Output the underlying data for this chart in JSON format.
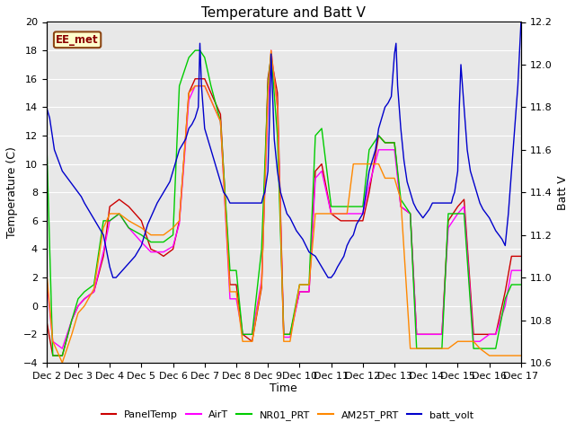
{
  "title": "Temperature and Batt V",
  "xlabel": "Time",
  "ylabel_left": "Temperature (C)",
  "ylabel_right": "Batt V",
  "watermark": "EE_met",
  "xlim": [
    0,
    15
  ],
  "ylim_left": [
    -4,
    20
  ],
  "ylim_right": [
    10.6,
    12.2
  ],
  "xtick_labels": [
    "Dec 2",
    "Dec 3",
    "Dec 4",
    "Dec 5",
    "Dec 6",
    "Dec 7",
    "Dec 8",
    "Dec 9",
    "Dec 10",
    "Dec 11",
    "Dec 12",
    "Dec 13",
    "Dec 14",
    "Dec 15",
    "Dec 16",
    "Dec 17"
  ],
  "yticks_left": [
    -4,
    -2,
    0,
    2,
    4,
    6,
    8,
    10,
    12,
    14,
    16,
    18,
    20
  ],
  "yticks_right": [
    10.6,
    10.8,
    11.0,
    11.2,
    11.4,
    11.6,
    11.8,
    12.0,
    12.2
  ],
  "PanelTemp_x": [
    0,
    0.2,
    0.5,
    0.8,
    1.0,
    1.2,
    1.5,
    1.8,
    2.0,
    2.3,
    2.6,
    3.0,
    3.3,
    3.5,
    3.7,
    4.0,
    4.2,
    4.5,
    4.7,
    4.85,
    5.0,
    5.2,
    5.5,
    5.8,
    6.0,
    6.2,
    6.5,
    6.8,
    7.0,
    7.1,
    7.3,
    7.5,
    7.7,
    8.0,
    8.3,
    8.5,
    8.7,
    9.0,
    9.3,
    9.5,
    9.7,
    10.0,
    10.2,
    10.5,
    10.7,
    11.0,
    11.2,
    11.5,
    11.7,
    12.0,
    12.2,
    12.5,
    12.7,
    13.0,
    13.2,
    13.5,
    13.7,
    14.0,
    14.2,
    14.5,
    14.7,
    15.0
  ],
  "PanelTemp_y": [
    -1,
    -3.5,
    -3.5,
    -1,
    0,
    0.5,
    1,
    3.5,
    7,
    7.5,
    7,
    6,
    4,
    3.8,
    3.5,
    4,
    6,
    15,
    16,
    16,
    16,
    15,
    13.5,
    1.5,
    1.5,
    -2,
    -2.5,
    1.3,
    16,
    17.5,
    15,
    -2,
    -2,
    1,
    1,
    9.5,
    10,
    6.5,
    6,
    6,
    6,
    6,
    8,
    12,
    11.5,
    11.5,
    7,
    6.5,
    -2,
    -2,
    -2,
    -2,
    6,
    7,
    7.5,
    -2,
    -2,
    -2,
    -2,
    1,
    3.5,
    3.5
  ],
  "AirT_x": [
    0,
    0.2,
    0.5,
    0.8,
    1.0,
    1.2,
    1.5,
    1.8,
    2.0,
    2.3,
    2.6,
    3.0,
    3.3,
    3.5,
    3.7,
    4.0,
    4.2,
    4.5,
    4.7,
    4.85,
    5.0,
    5.2,
    5.5,
    5.8,
    6.0,
    6.2,
    6.5,
    6.8,
    7.0,
    7.1,
    7.3,
    7.5,
    7.7,
    8.0,
    8.3,
    8.5,
    8.7,
    9.0,
    9.3,
    9.5,
    9.7,
    10.0,
    10.2,
    10.5,
    10.7,
    11.0,
    11.2,
    11.5,
    11.7,
    12.0,
    12.2,
    12.5,
    12.7,
    13.0,
    13.2,
    13.5,
    13.7,
    14.0,
    14.2,
    14.5,
    14.7,
    15.0
  ],
  "AirT_y": [
    2,
    -2.5,
    -3,
    -1,
    0,
    0.5,
    1,
    3.8,
    6,
    6.5,
    5.5,
    4.5,
    3.8,
    3.8,
    3.8,
    4.2,
    5.8,
    14.5,
    15.5,
    15.5,
    15.5,
    14.5,
    13,
    0.5,
    0.5,
    -2,
    -2,
    1.8,
    14,
    18,
    14,
    -2.2,
    -2.2,
    1,
    1,
    9,
    9.5,
    6.5,
    6.5,
    6.5,
    6.5,
    6.5,
    8.5,
    11,
    11,
    11,
    7,
    6.5,
    -2,
    -2,
    -2,
    -2,
    5.5,
    6.5,
    7,
    -2.5,
    -2.5,
    -2,
    -2,
    0,
    2.5,
    2.5
  ],
  "NR01_PRT_x": [
    0,
    0.2,
    0.5,
    0.8,
    1.0,
    1.2,
    1.5,
    1.8,
    2.0,
    2.3,
    2.6,
    3.0,
    3.3,
    3.5,
    3.7,
    4.0,
    4.2,
    4.5,
    4.7,
    4.85,
    5.0,
    5.2,
    5.5,
    5.8,
    6.0,
    6.2,
    6.5,
    6.8,
    7.0,
    7.1,
    7.3,
    7.5,
    7.7,
    8.0,
    8.3,
    8.5,
    8.7,
    9.0,
    9.3,
    9.5,
    9.7,
    10.0,
    10.2,
    10.5,
    10.7,
    11.0,
    11.2,
    11.5,
    11.7,
    12.0,
    12.2,
    12.5,
    12.7,
    13.0,
    13.2,
    13.5,
    13.7,
    14.0,
    14.2,
    14.5,
    14.7,
    15.0
  ],
  "NR01_PRT_y": [
    12,
    -3.5,
    -3.5,
    -1,
    0.5,
    1,
    1.5,
    6,
    6,
    6.5,
    5.5,
    5,
    4.5,
    4.5,
    4.5,
    5,
    15.5,
    17.5,
    18,
    18,
    17.5,
    15.5,
    13,
    2.5,
    2.5,
    -2,
    -2,
    4,
    15.5,
    17.8,
    12,
    -2,
    -2,
    1.5,
    1.5,
    12,
    12.5,
    7,
    7,
    7,
    7,
    7,
    11,
    12,
    11.5,
    11.5,
    7.5,
    6.5,
    -3,
    -3,
    -3,
    -3,
    6.5,
    6.5,
    6.5,
    -3,
    -3,
    -3,
    -3,
    0.5,
    1.5,
    1.5
  ],
  "AM25T_PRT_x": [
    0,
    0.2,
    0.5,
    0.8,
    1.0,
    1.2,
    1.5,
    1.8,
    2.0,
    2.3,
    2.6,
    3.0,
    3.3,
    3.5,
    3.7,
    4.0,
    4.2,
    4.5,
    4.7,
    4.85,
    5.0,
    5.2,
    5.5,
    5.8,
    6.0,
    6.2,
    6.5,
    6.8,
    7.0,
    7.1,
    7.3,
    7.5,
    7.7,
    8.0,
    8.3,
    8.5,
    8.7,
    9.0,
    9.3,
    9.5,
    9.7,
    10.0,
    10.2,
    10.5,
    10.7,
    11.0,
    11.2,
    11.5,
    11.7,
    12.0,
    12.2,
    12.5,
    12.7,
    13.0,
    13.2,
    13.5,
    13.7,
    14.0,
    14.2,
    14.5,
    14.7,
    15.0
  ],
  "AM25T_PRT_y": [
    2.5,
    -2.5,
    -4,
    -2,
    -0.5,
    0,
    1.2,
    5.5,
    6.5,
    6.5,
    6,
    5.5,
    5,
    5,
    5,
    5.5,
    6,
    15,
    15.5,
    15.5,
    15.5,
    14.5,
    13,
    1,
    1,
    -2.5,
    -2.5,
    1.5,
    15,
    18,
    14,
    -2.5,
    -2.5,
    1.5,
    1.5,
    6.5,
    6.5,
    6.5,
    6.5,
    6.5,
    10,
    10,
    10,
    10,
    9,
    9,
    7.5,
    -3,
    -3,
    -3,
    -3,
    -3,
    -3,
    -2.5,
    -2.5,
    -2.5,
    -3,
    -3.5,
    -3.5,
    -3.5,
    -3.5,
    -3.5
  ],
  "batt_volt_x": [
    0,
    0.1,
    0.15,
    0.25,
    0.5,
    0.75,
    0.9,
    1.0,
    1.1,
    1.2,
    1.4,
    1.6,
    1.8,
    2.0,
    2.1,
    2.2,
    2.5,
    2.8,
    3.0,
    3.1,
    3.2,
    3.5,
    3.7,
    3.9,
    4.0,
    4.1,
    4.2,
    4.4,
    4.5,
    4.6,
    4.7,
    4.8,
    4.85,
    4.9,
    5.0,
    5.1,
    5.2,
    5.3,
    5.4,
    5.5,
    5.6,
    5.7,
    5.8,
    5.9,
    6.0,
    6.1,
    6.2,
    6.3,
    6.4,
    6.5,
    6.6,
    6.7,
    6.8,
    6.85,
    6.9,
    7.0,
    7.05,
    7.1,
    7.15,
    7.2,
    7.3,
    7.4,
    7.5,
    7.6,
    7.7,
    7.8,
    7.9,
    8.0,
    8.1,
    8.2,
    8.3,
    8.5,
    8.7,
    8.9,
    9.0,
    9.1,
    9.2,
    9.4,
    9.5,
    9.6,
    9.7,
    9.8,
    10.0,
    10.1,
    10.2,
    10.4,
    10.5,
    10.6,
    10.7,
    10.8,
    10.9,
    11.0,
    11.05,
    11.1,
    11.2,
    11.3,
    11.4,
    11.5,
    11.6,
    11.7,
    11.8,
    11.9,
    12.0,
    12.1,
    12.2,
    12.3,
    12.4,
    12.5,
    12.6,
    12.7,
    12.8,
    12.85,
    12.9,
    13.0,
    13.05,
    13.1,
    13.2,
    13.3,
    13.4,
    13.5,
    13.6,
    13.7,
    13.8,
    13.9,
    14.0,
    14.1,
    14.2,
    14.3,
    14.4,
    14.5,
    14.6,
    14.7,
    14.8,
    14.9,
    15.0
  ],
  "batt_volt_y": [
    11.8,
    11.75,
    11.7,
    11.6,
    11.5,
    11.45,
    11.42,
    11.4,
    11.38,
    11.35,
    11.3,
    11.25,
    11.2,
    11.05,
    11.0,
    11.0,
    11.05,
    11.1,
    11.15,
    11.2,
    11.25,
    11.35,
    11.4,
    11.45,
    11.5,
    11.55,
    11.6,
    11.65,
    11.7,
    11.72,
    11.75,
    11.8,
    12.1,
    11.9,
    11.7,
    11.65,
    11.6,
    11.55,
    11.5,
    11.45,
    11.4,
    11.38,
    11.35,
    11.35,
    11.35,
    11.35,
    11.35,
    11.35,
    11.35,
    11.35,
    11.35,
    11.35,
    11.35,
    11.38,
    11.4,
    11.5,
    11.75,
    12.05,
    11.85,
    11.65,
    11.5,
    11.4,
    11.35,
    11.3,
    11.28,
    11.25,
    11.22,
    11.2,
    11.18,
    11.15,
    11.12,
    11.1,
    11.05,
    11.0,
    11.0,
    11.02,
    11.05,
    11.1,
    11.15,
    11.18,
    11.2,
    11.25,
    11.3,
    11.4,
    11.5,
    11.6,
    11.7,
    11.75,
    11.8,
    11.82,
    11.85,
    12.05,
    12.1,
    11.9,
    11.7,
    11.55,
    11.45,
    11.4,
    11.35,
    11.32,
    11.3,
    11.28,
    11.3,
    11.32,
    11.35,
    11.35,
    11.35,
    11.35,
    11.35,
    11.35,
    11.35,
    11.38,
    11.4,
    11.5,
    11.8,
    12.0,
    11.8,
    11.6,
    11.5,
    11.45,
    11.4,
    11.35,
    11.32,
    11.3,
    11.28,
    11.25,
    11.22,
    11.2,
    11.18,
    11.15,
    11.3,
    11.5,
    11.7,
    11.9,
    12.2
  ],
  "legend": [
    {
      "label": "PanelTemp",
      "color": "#cc0000"
    },
    {
      "label": "AirT",
      "color": "#ff00ff"
    },
    {
      "label": "NR01_PRT",
      "color": "#00cc00"
    },
    {
      "label": "AM25T_PRT",
      "color": "#ff8800"
    },
    {
      "label": "batt_volt",
      "color": "#0000cc"
    }
  ],
  "bg_color": "#e8e8e8",
  "grid_color": "#ffffff",
  "title_fontsize": 11,
  "axis_fontsize": 9,
  "tick_fontsize": 8
}
